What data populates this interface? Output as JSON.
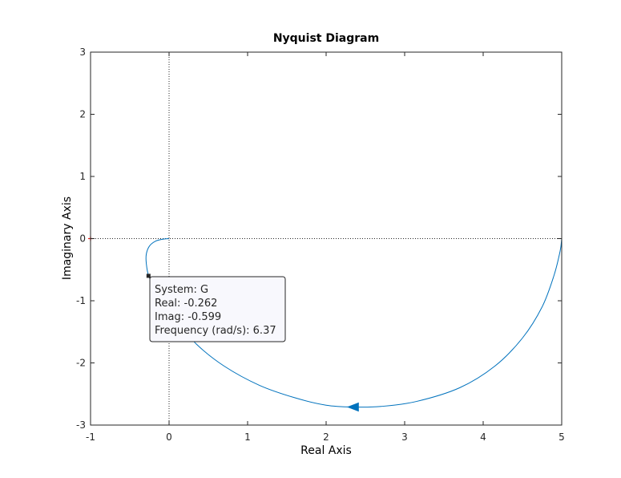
{
  "chart_data": {
    "type": "line",
    "title": "Nyquist Diagram",
    "xlabel": "Real Axis",
    "ylabel": "Imaginary Axis",
    "xlim": [
      -1,
      5
    ],
    "ylim": [
      -3,
      3
    ],
    "xticks": [
      -1,
      0,
      1,
      2,
      3,
      4,
      5
    ],
    "yticks": [
      -3,
      -2,
      -1,
      0,
      1,
      2,
      3
    ],
    "grid": false,
    "critical_point": [
      -1,
      0
    ],
    "series": [
      {
        "color": "#0072BD",
        "x": [
          5.0,
          4.98,
          4.9,
          4.75,
          4.5,
          4.15,
          3.7,
          3.15,
          2.7,
          2.35,
          2.0,
          1.6,
          1.15,
          0.7,
          0.35,
          0.12,
          -0.05,
          -0.18,
          -0.26,
          -0.29,
          -0.29,
          -0.25,
          -0.17,
          -0.08,
          0.0
        ],
        "y": [
          0.0,
          -0.2,
          -0.6,
          -1.1,
          -1.6,
          -2.05,
          -2.4,
          -2.62,
          -2.7,
          -2.71,
          -2.68,
          -2.56,
          -2.36,
          -2.05,
          -1.7,
          -1.35,
          -1.02,
          -0.78,
          -0.6,
          -0.4,
          -0.25,
          -0.12,
          -0.04,
          -0.01,
          0.0
        ]
      }
    ],
    "direction_arrow": {
      "x": 2.35,
      "y": -2.71
    },
    "datatip": {
      "point": {
        "x": -0.262,
        "y": -0.599
      },
      "lines": [
        "System: G",
        "Real: -0.262",
        "Imag: -0.599",
        "Frequency (rad/s): 6.37"
      ]
    }
  }
}
